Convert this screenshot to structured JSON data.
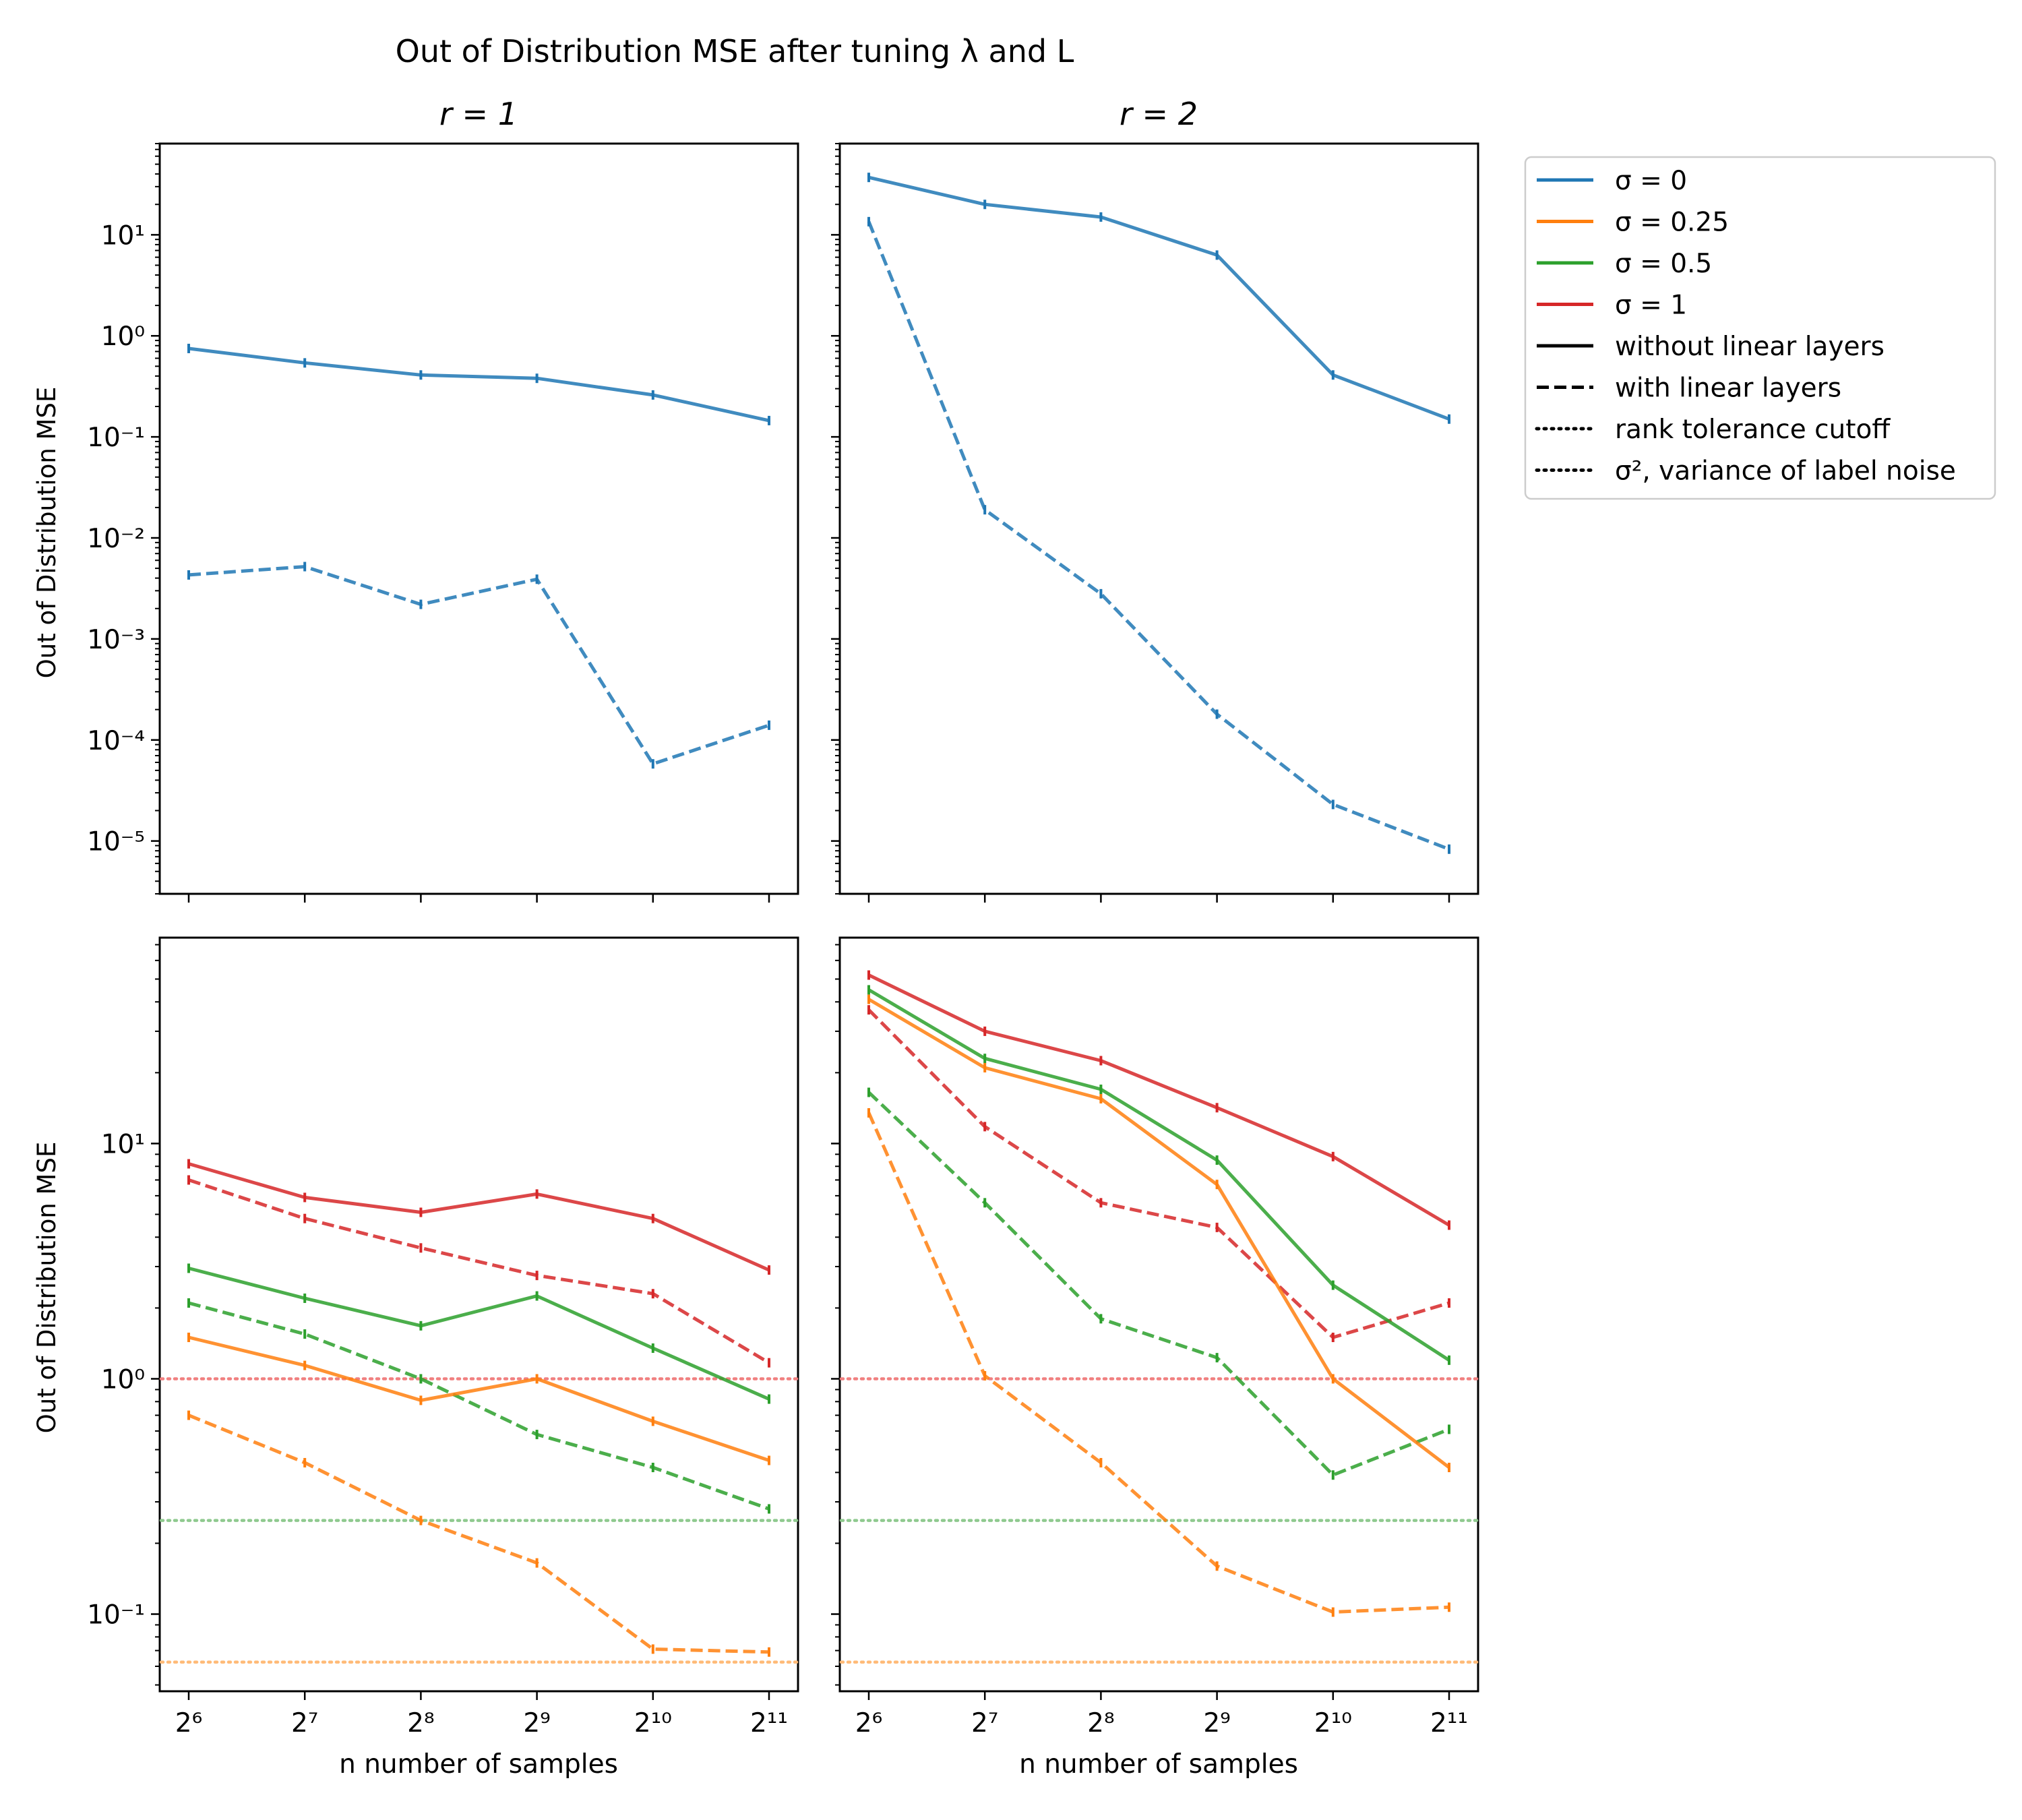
{
  "figure": {
    "title": "Out of Distribution MSE after tuning λ and L"
  },
  "legend": {
    "placement": "outside-right-top",
    "entries": [
      {
        "label": "σ = 0",
        "color": "#1f77b4",
        "style": "solid"
      },
      {
        "label": "σ = 0.25",
        "color": "#ff7f0e",
        "style": "solid"
      },
      {
        "label": "σ = 0.5",
        "color": "#2ca02c",
        "style": "solid"
      },
      {
        "label": "σ = 1",
        "color": "#d62728",
        "style": "solid"
      },
      {
        "label": "without linear layers",
        "color": "#000000",
        "style": "solid"
      },
      {
        "label": "with linear layers",
        "color": "#000000",
        "style": "dashed"
      },
      {
        "label": "rank tolerance cutoff",
        "color": "#000000",
        "style": "dotted"
      },
      {
        "label": "σ², variance of label noise",
        "color": "#000000",
        "style": "dotted"
      }
    ]
  },
  "chart_data": [
    {
      "type": "line",
      "panel": "top-left",
      "title": "r = 1",
      "xlabel": "",
      "ylabel": "Out of Distribution MSE",
      "yscale": "log",
      "xscale": "log2",
      "ylim": [
        3e-06,
        80
      ],
      "x": [
        64,
        128,
        256,
        512,
        1024,
        2048
      ],
      "xticks": [
        "2⁶",
        "2⁷",
        "2⁸",
        "2⁹",
        "2¹⁰",
        "2¹¹"
      ],
      "yticks": [
        "10⁻⁵",
        "10⁻⁴",
        "10⁻³",
        "10⁻²",
        "10⁻¹",
        "10⁰",
        "10¹"
      ],
      "hlines": [],
      "series": [
        {
          "color": "#1f77b4",
          "dash": "solid",
          "values": [
            0.75,
            0.54,
            0.41,
            0.38,
            0.26,
            0.145
          ]
        },
        {
          "color": "#1f77b4",
          "dash": "dashed",
          "values": [
            0.0043,
            0.0052,
            0.0022,
            0.0039,
            5.8e-05,
            0.00014
          ]
        }
      ]
    },
    {
      "type": "line",
      "panel": "top-right",
      "title": "r = 2",
      "xlabel": "",
      "ylabel": "",
      "yscale": "log",
      "xscale": "log2",
      "ylim": [
        3e-06,
        80
      ],
      "x": [
        64,
        128,
        256,
        512,
        1024,
        2048
      ],
      "xticks": [
        "2⁶",
        "2⁷",
        "2⁸",
        "2⁹",
        "2¹⁰",
        "2¹¹"
      ],
      "hlines": [],
      "series": [
        {
          "color": "#1f77b4",
          "dash": "solid",
          "values": [
            37,
            20,
            15,
            6.3,
            0.41,
            0.15
          ]
        },
        {
          "color": "#1f77b4",
          "dash": "dashed",
          "values": [
            13.5,
            0.019,
            0.0028,
            0.00018,
            2.3e-05,
            8.3e-06
          ]
        }
      ]
    },
    {
      "type": "line",
      "panel": "bottom-left",
      "title": "",
      "xlabel": "n number of samples",
      "ylabel": "Out of Distribution MSE",
      "yscale": "log",
      "xscale": "log2",
      "ylim": [
        0.047,
        75
      ],
      "x": [
        64,
        128,
        256,
        512,
        1024,
        2048
      ],
      "xticks": [
        "2⁶",
        "2⁷",
        "2⁸",
        "2⁹",
        "2¹⁰",
        "2¹¹"
      ],
      "yticks": [
        "10⁻¹",
        "10⁰",
        "10¹"
      ],
      "hlines": [
        {
          "y": 1.0,
          "color": "#f08080"
        },
        {
          "y": 0.25,
          "color": "#8fc98f"
        },
        {
          "y": 0.0625,
          "color": "#ffbb78"
        }
      ],
      "series": [
        {
          "color": "#d62728",
          "dash": "solid",
          "values": [
            8.2,
            5.9,
            5.1,
            6.1,
            4.8,
            2.9
          ]
        },
        {
          "color": "#d62728",
          "dash": "dashed",
          "values": [
            7.0,
            4.8,
            3.6,
            2.75,
            2.3,
            1.17
          ]
        },
        {
          "color": "#2ca02c",
          "dash": "solid",
          "values": [
            2.95,
            2.2,
            1.68,
            2.25,
            1.35,
            0.82
          ]
        },
        {
          "color": "#2ca02c",
          "dash": "dashed",
          "values": [
            2.1,
            1.55,
            1.0,
            0.58,
            0.42,
            0.28
          ]
        },
        {
          "color": "#ff7f0e",
          "dash": "solid",
          "values": [
            1.5,
            1.14,
            0.81,
            1.0,
            0.66,
            0.45
          ]
        },
        {
          "color": "#ff7f0e",
          "dash": "dashed",
          "values": [
            0.7,
            0.44,
            0.25,
            0.165,
            0.071,
            0.069
          ]
        }
      ]
    },
    {
      "type": "line",
      "panel": "bottom-right",
      "title": "",
      "xlabel": "n number of samples",
      "ylabel": "",
      "yscale": "log",
      "xscale": "log2",
      "ylim": [
        0.047,
        75
      ],
      "x": [
        64,
        128,
        256,
        512,
        1024,
        2048
      ],
      "xticks": [
        "2⁶",
        "2⁷",
        "2⁸",
        "2⁹",
        "2¹⁰",
        "2¹¹"
      ],
      "hlines": [
        {
          "y": 1.0,
          "color": "#f08080"
        },
        {
          "y": 0.25,
          "color": "#8fc98f"
        },
        {
          "y": 0.0625,
          "color": "#ffbb78"
        }
      ],
      "series": [
        {
          "color": "#d62728",
          "dash": "solid",
          "values": [
            52,
            30,
            22.5,
            14.2,
            8.8,
            4.5
          ]
        },
        {
          "color": "#d62728",
          "dash": "dashed",
          "values": [
            37,
            11.8,
            5.6,
            4.4,
            1.5,
            2.1
          ]
        },
        {
          "color": "#2ca02c",
          "dash": "solid",
          "values": [
            45,
            23,
            17,
            8.5,
            2.5,
            1.2
          ]
        },
        {
          "color": "#2ca02c",
          "dash": "dashed",
          "values": [
            16.5,
            5.6,
            1.8,
            1.23,
            0.39,
            0.61
          ]
        },
        {
          "color": "#ff7f0e",
          "dash": "solid",
          "values": [
            41,
            21,
            15.5,
            6.7,
            1.0,
            0.42
          ]
        },
        {
          "color": "#ff7f0e",
          "dash": "dashed",
          "values": [
            13.5,
            1.03,
            0.44,
            0.16,
            0.102,
            0.107
          ]
        }
      ]
    }
  ]
}
